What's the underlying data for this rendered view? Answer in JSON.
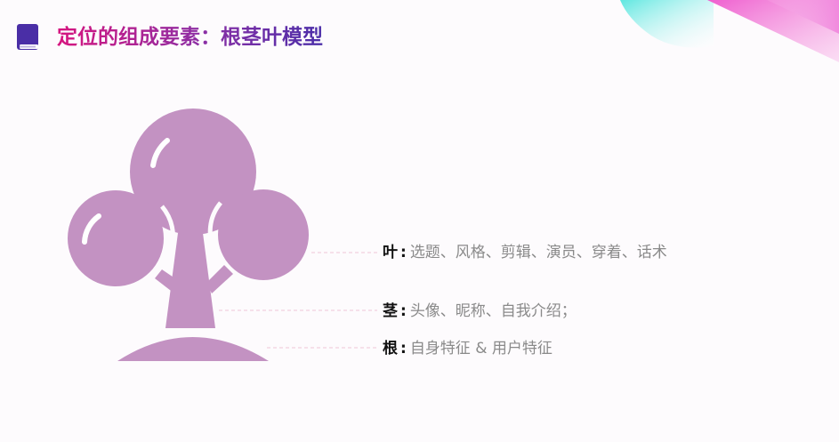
{
  "header": {
    "title": "定位的组成要素：根茎叶模型",
    "icon": "book-icon"
  },
  "colors": {
    "tree": "#c392c2",
    "title_start": "#d6157f",
    "title_end": "#4b2ea9",
    "icon": "#4a2ea6",
    "connector": "#f0c4d6",
    "value_text": "#8a8a8a"
  },
  "model": {
    "leaf": {
      "key": "叶",
      "colon": ":",
      "value": "选题、风格、剪辑、演员、穿着、话术"
    },
    "stem": {
      "key": "茎",
      "colon": ":",
      "value": "头像、昵称、自我介绍；"
    },
    "root": {
      "key": "根",
      "colon": ":",
      "value": "自身特征 & 用户特征"
    }
  }
}
